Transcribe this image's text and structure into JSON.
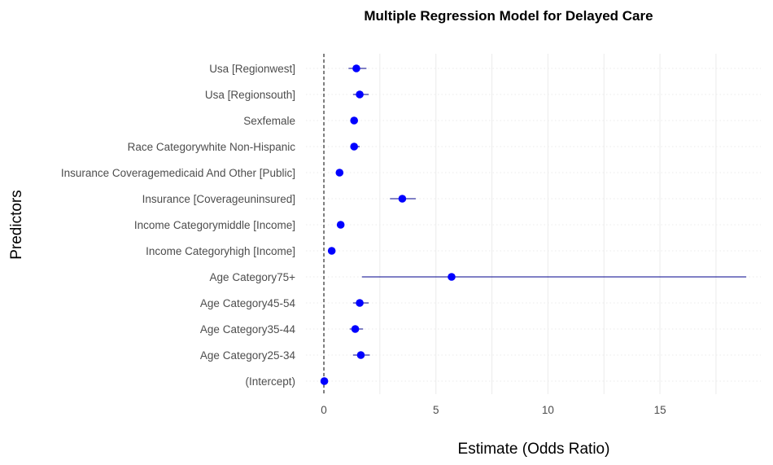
{
  "chart_data": {
    "type": "scatter",
    "title": "Multiple Regression Model for Delayed Care",
    "xlabel": "Estimate (Odds Ratio)",
    "ylabel": "Predictors",
    "xlim": [
      -0.8,
      19.5
    ],
    "xticks": [
      0,
      5,
      10,
      15
    ],
    "xtick_labels": [
      "0",
      "5",
      "10",
      "15"
    ],
    "reference_line_x": 0,
    "point_color": "#0000ff",
    "errorbar_color": "#00008b",
    "grid": true,
    "categories": [
      "Usa [Regionwest]",
      "Usa [Regionsouth]",
      "Sexfemale",
      "Race Categorywhite Non-Hispanic",
      "Insurance Coveragemedicaid And Other [Public]",
      "Insurance [Coverageuninsured]",
      "Income Categorymiddle [Income]",
      "Income Categoryhigh [Income]",
      "Age Category75+",
      "Age Category45-54",
      "Age Category35-44",
      "Age Category25-34",
      "(Intercept)"
    ],
    "estimates": [
      1.45,
      1.6,
      1.35,
      1.35,
      0.7,
      3.5,
      0.75,
      0.35,
      5.7,
      1.6,
      1.4,
      1.65,
      0.02
    ],
    "ci_low": [
      1.1,
      1.3,
      1.25,
      1.2,
      0.6,
      2.95,
      0.65,
      0.3,
      1.7,
      1.3,
      1.15,
      1.3,
      0.0
    ],
    "ci_high": [
      1.9,
      2.0,
      1.5,
      1.6,
      0.8,
      4.1,
      0.9,
      0.45,
      18.85,
      2.0,
      1.75,
      2.05,
      0.05
    ]
  }
}
